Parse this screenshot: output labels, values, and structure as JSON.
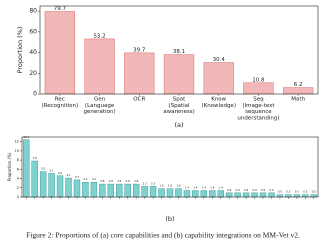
{
  "caption": "Figure 2: Proportions of (a) core capabilities and (b) capability integrations on MM-Vet v2.",
  "chart_data": [
    {
      "type": "bar",
      "label": "(a)",
      "y_label": "Proportion (%)",
      "categories": [
        [
          "Rec",
          "(Recognition)"
        ],
        [
          "Gen",
          "(Language",
          "generation)"
        ],
        [
          "OCR"
        ],
        [
          "Spat",
          "(Spatial",
          "awareness)"
        ],
        [
          "Know",
          "(Knowledge)"
        ],
        [
          "Seq",
          "(Image-text",
          "sequence",
          "understanding)"
        ],
        [
          "Math"
        ]
      ],
      "values": [
        79.7,
        53.2,
        39.7,
        38.1,
        30.4,
        10.8,
        6.2
      ],
      "color": "#f2b8b8",
      "edge": "#d46a6a",
      "ylim": [
        0,
        85
      ],
      "yticks": [
        0,
        20,
        40,
        60,
        80
      ]
    },
    {
      "type": "bar",
      "label": "(b)",
      "y_label": "Proportion (%)",
      "categories": [
        null,
        null,
        null,
        null,
        null,
        null,
        null,
        null,
        null,
        null,
        null,
        null,
        null,
        null,
        null,
        null,
        null,
        null,
        null,
        null,
        null,
        null,
        null,
        null,
        null,
        null,
        null,
        null,
        null,
        null,
        null,
        null,
        null,
        null,
        null
      ],
      "values": [
        12.4,
        7.8,
        5.5,
        5.1,
        4.6,
        4.1,
        3.7,
        3.2,
        3.2,
        2.8,
        2.8,
        2.8,
        2.8,
        2.8,
        2.3,
        2.3,
        1.8,
        1.8,
        1.8,
        1.4,
        1.4,
        1.4,
        1.4,
        1.4,
        0.9,
        0.9,
        0.9,
        0.9,
        0.9,
        0.9,
        0.5,
        0.5,
        0.5,
        0.5,
        0.5
      ],
      "color": "#7fd1cf",
      "edge": "#3a9e9b",
      "ylim": [
        0,
        13
      ],
      "yticks": [
        0,
        2,
        4,
        6,
        8,
        10,
        12
      ]
    }
  ]
}
